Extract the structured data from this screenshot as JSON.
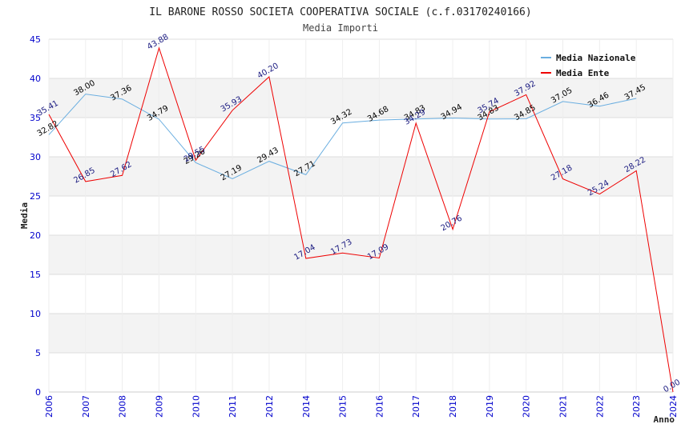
{
  "title": "IL BARONE ROSSO SOCIETA COOPERATIVA SOCIALE (c.f.03170240166)",
  "subtitle": "Media Importi",
  "chart_data": {
    "type": "line",
    "title": "IL BARONE ROSSO SOCIETA COOPERATIVA SOCIALE (c.f.03170240166)",
    "subtitle": "Media Importi",
    "xlabel": "Anno",
    "ylabel": "Media",
    "ylim": [
      0,
      45
    ],
    "yticks": [
      "0",
      "5",
      "10",
      "15",
      "20",
      "25",
      "30",
      "35",
      "40",
      "45"
    ],
    "categories": [
      "2006",
      "2007",
      "2008",
      "2009",
      "2010",
      "2011",
      "2012",
      "2014",
      "2015",
      "2016",
      "2017",
      "2018",
      "2019",
      "2020",
      "2021",
      "2022",
      "2023",
      "2024"
    ],
    "grid": "horizontal, alternating bands",
    "legend_position": "top-right",
    "series": [
      {
        "name": "Media Nazionale",
        "color": "#6aaee0",
        "values": [
          32.82,
          38.0,
          37.36,
          34.79,
          29.26,
          27.19,
          29.43,
          27.71,
          34.32,
          34.68,
          34.83,
          34.94,
          34.83,
          34.85,
          37.05,
          36.46,
          37.45,
          null
        ],
        "labels": [
          "32.82",
          "38.00",
          "37.36",
          "34.79",
          "29.26",
          "27.19",
          "29.43",
          "27.71",
          "34.32",
          "34.68",
          "34.83",
          "34.94",
          "34.83",
          "34.85",
          "37.05",
          "36.46",
          "37.45",
          null
        ]
      },
      {
        "name": "Media Ente",
        "color": "#ee0000",
        "values": [
          35.41,
          26.85,
          27.62,
          43.88,
          29.55,
          35.93,
          40.2,
          17.04,
          17.73,
          17.09,
          34.29,
          20.76,
          35.74,
          37.92,
          27.18,
          25.24,
          28.22,
          0.0
        ],
        "labels": [
          "35.41",
          "26.85",
          "27.62",
          "43.88",
          "29.55",
          "35.93",
          "40.20",
          "17.04",
          "17.73",
          "17.09",
          "34.29",
          "20.76",
          "35.74",
          "37.92",
          "27.18",
          "25.24",
          "28.22",
          "0.00"
        ]
      }
    ]
  }
}
